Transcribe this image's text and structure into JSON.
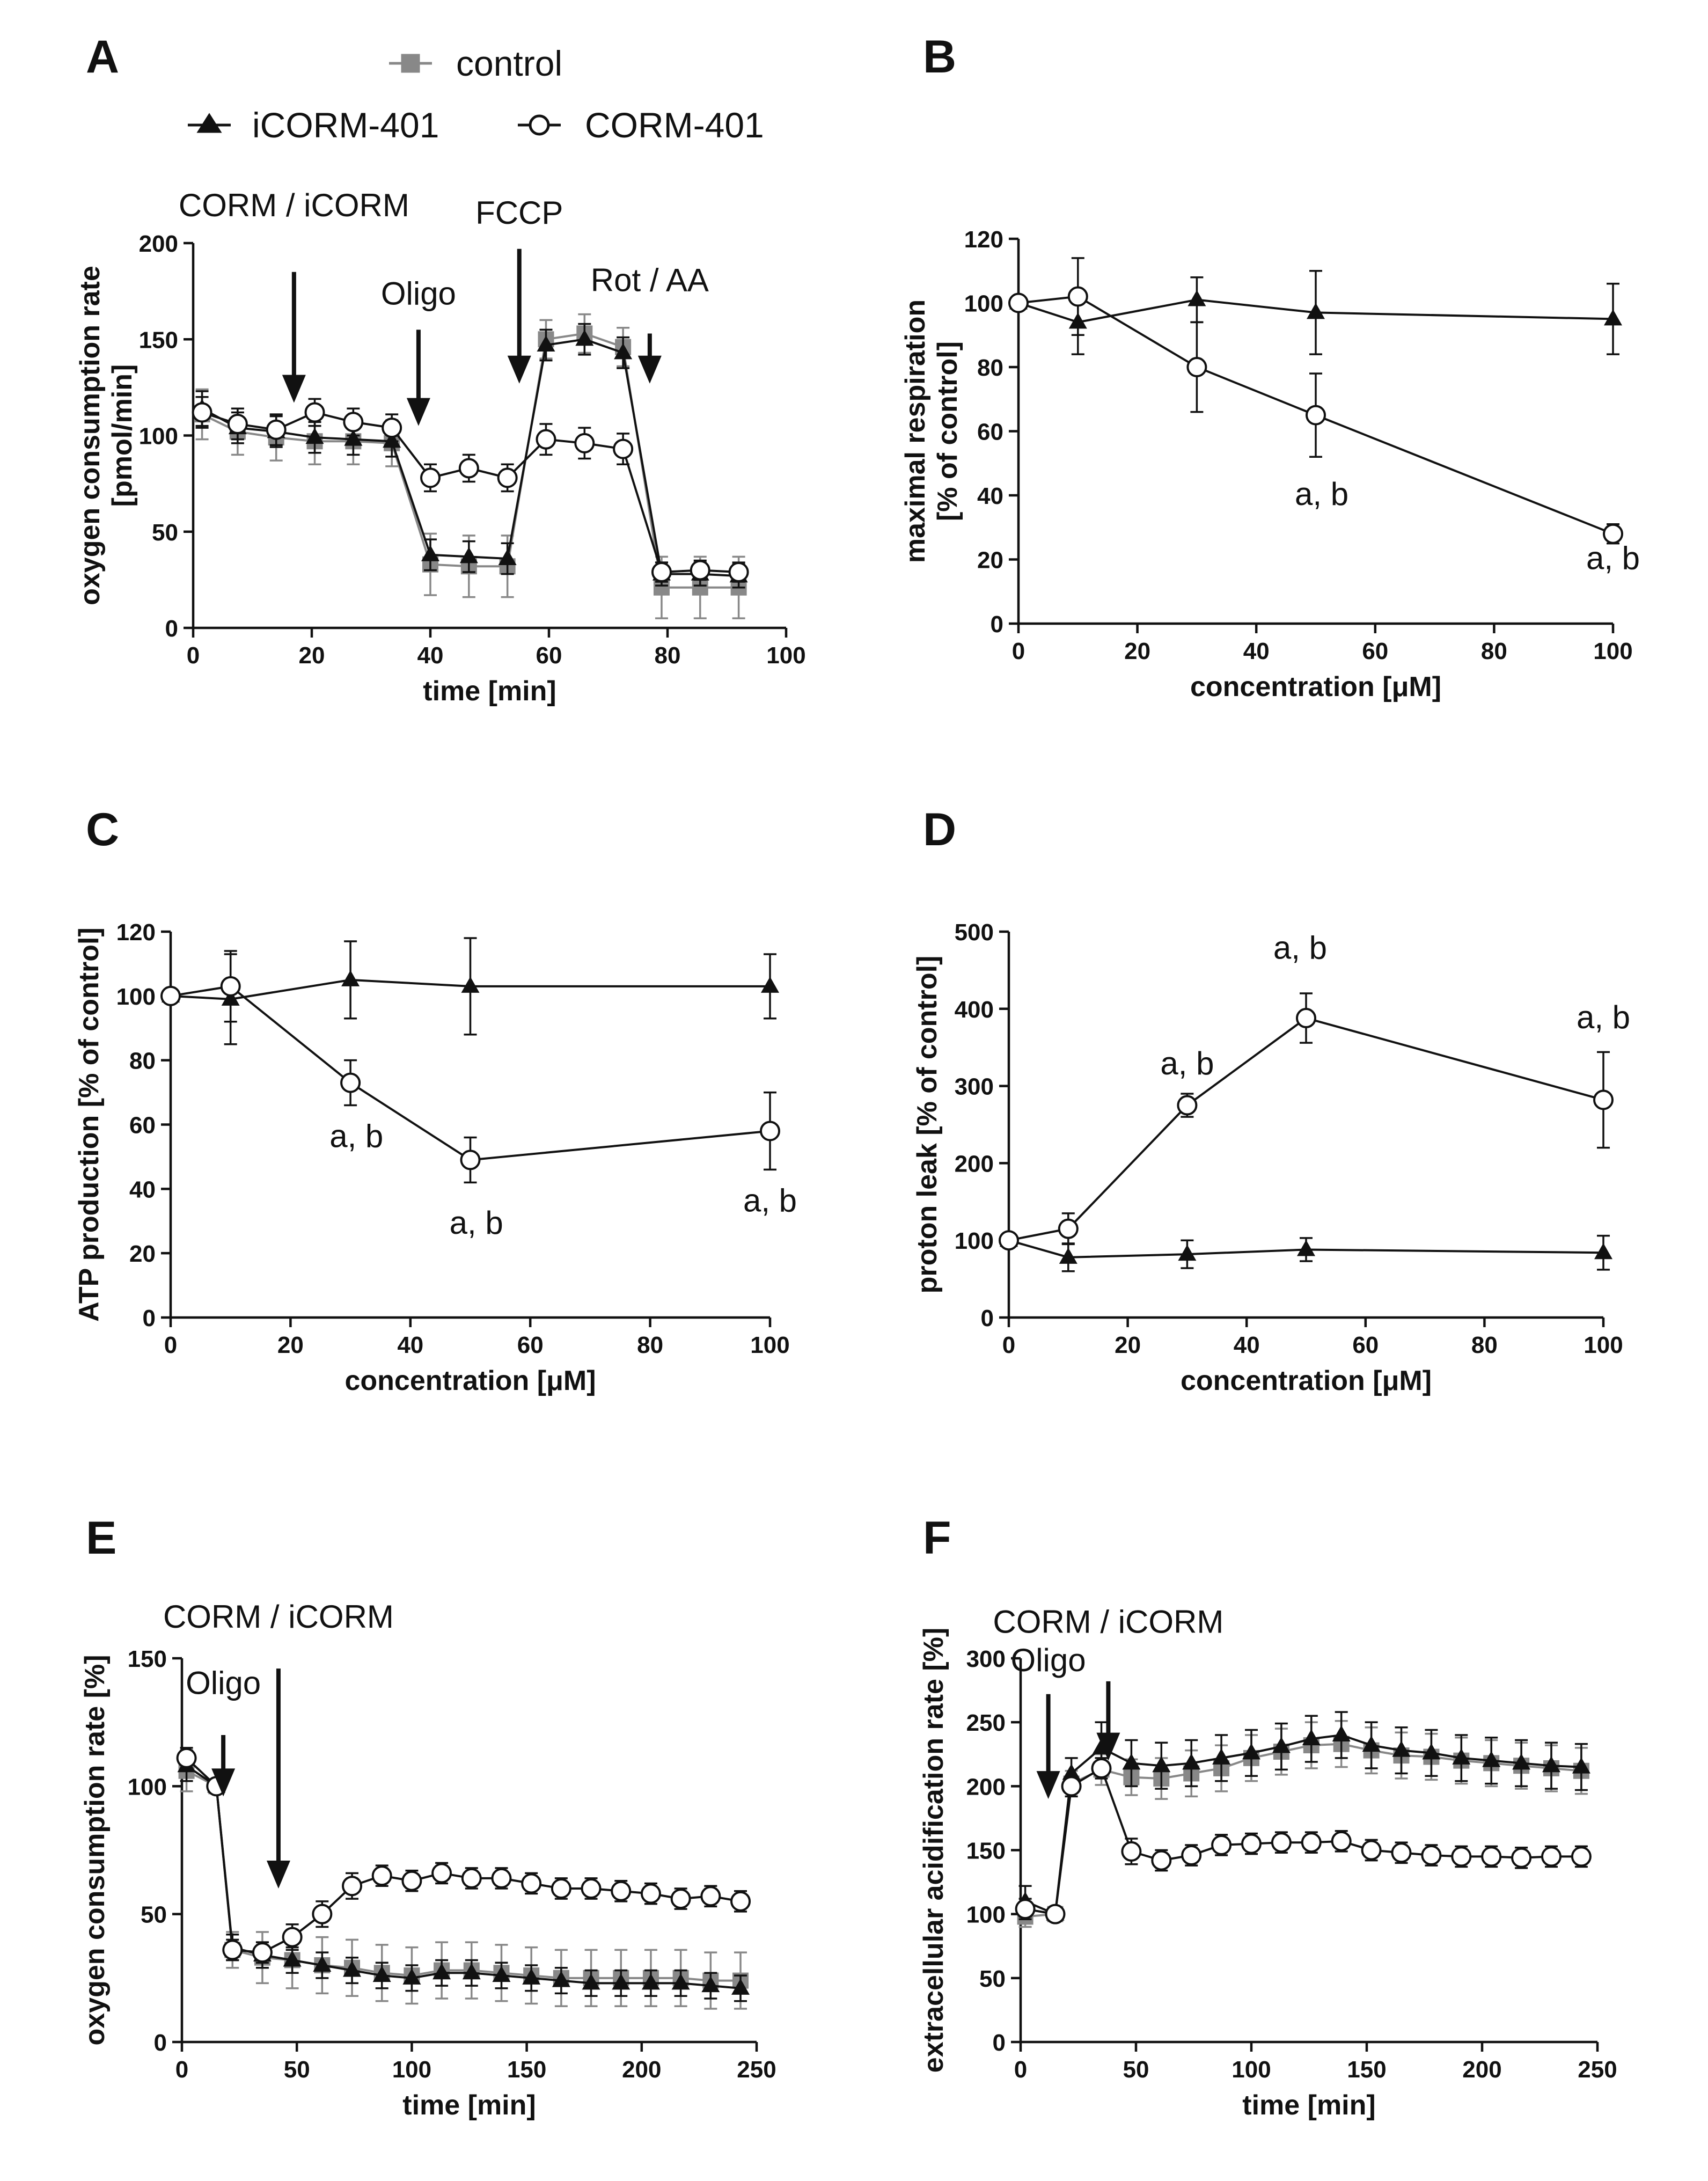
{
  "colors": {
    "control": "#888888",
    "icorm": "#111111",
    "corm": "#111111",
    "axis": "#111111"
  },
  "legend": {
    "control": "control",
    "icorm": "iCORM-401",
    "corm": "CORM-401"
  },
  "chart_data": [
    {
      "panel": "A",
      "type": "line",
      "xlabel": "time [min]",
      "ylabel": "oxygen consumption rate",
      "ylabel2": "[pmol/min]",
      "xlim": [
        0,
        100
      ],
      "ylim": [
        0,
        200
      ],
      "xticks": [
        0,
        20,
        40,
        60,
        80,
        100
      ],
      "yticks": [
        0,
        50,
        100,
        150,
        200
      ],
      "annotations": [
        {
          "text": "CORM / iCORM",
          "x": 17,
          "y_tip": 117,
          "y_top": 185,
          "label_y": 214
        },
        {
          "text": "Oligo",
          "x": 38,
          "y_tip": 105,
          "y_top": 155,
          "label_y": 168
        },
        {
          "text": "FCCP",
          "x": 55,
          "y_tip": 127,
          "y_top": 197,
          "label_y": 210
        },
        {
          "text": "Rot / AA",
          "x": 77,
          "y_tip": 127,
          "y_top": 153,
          "label_y": 175
        }
      ],
      "series": [
        {
          "name": "control",
          "marker": "square",
          "color": "#888888",
          "x": [
            1.5,
            7.5,
            14,
            20.5,
            27,
            33.5,
            40,
            46.5,
            53,
            59.5,
            66,
            72.5,
            79,
            85.5,
            92
          ],
          "y": [
            111,
            102,
            99,
            97,
            97,
            96,
            33,
            32,
            32,
            150,
            153,
            146,
            21,
            21,
            21
          ],
          "err": [
            13,
            12,
            12,
            12,
            12,
            12,
            16,
            16,
            16,
            10,
            10,
            10,
            16,
            16,
            16
          ]
        },
        {
          "name": "iCORM-401",
          "marker": "triangle",
          "color": "#111111",
          "x": [
            1.5,
            7.5,
            14,
            20.5,
            27,
            33.5,
            40,
            46.5,
            53,
            59.5,
            66,
            72.5,
            79,
            85.5,
            92
          ],
          "y": [
            114,
            104,
            102,
            99,
            98,
            97,
            38,
            37,
            36,
            147,
            150,
            143,
            28,
            28,
            27
          ],
          "err": [
            9,
            8,
            8,
            8,
            8,
            8,
            8,
            8,
            8,
            8,
            8,
            8,
            6,
            6,
            6
          ]
        },
        {
          "name": "CORM-401",
          "marker": "circle",
          "color": "#111111",
          "x": [
            1.5,
            7.5,
            14,
            20.5,
            27,
            33.5,
            40,
            46.5,
            53,
            59.5,
            66,
            72.5,
            79,
            85.5,
            92
          ],
          "y": [
            112,
            106,
            103,
            112,
            107,
            104,
            78,
            83,
            78,
            98,
            96,
            93,
            29,
            30,
            29
          ],
          "err": [
            8,
            8,
            8,
            7,
            7,
            7,
            7,
            7,
            7,
            8,
            8,
            8,
            5,
            5,
            5
          ]
        }
      ]
    },
    {
      "panel": "B",
      "type": "line",
      "xlabel": "concentration [μM]",
      "ylabel": "maximal respiration",
      "ylabel2": "[% of control]",
      "xlim": [
        0,
        100
      ],
      "ylim": [
        0,
        120
      ],
      "xticks": [
        0,
        20,
        40,
        60,
        80,
        100
      ],
      "yticks": [
        0,
        20,
        40,
        60,
        80,
        100,
        120
      ],
      "annotations": [
        {
          "text": "a, b",
          "x": 51,
          "y": 37
        },
        {
          "text": "a, b",
          "x": 100,
          "y": 17
        }
      ],
      "series": [
        {
          "name": "iCORM-401",
          "marker": "triangle",
          "color": "#111111",
          "x": [
            0,
            10,
            30,
            50,
            100
          ],
          "y": [
            100,
            94,
            101,
            97,
            95
          ],
          "err": [
            0,
            10,
            7,
            13,
            11
          ]
        },
        {
          "name": "CORM-401",
          "marker": "circle",
          "color": "#111111",
          "x": [
            0,
            10,
            30,
            50,
            100
          ],
          "y": [
            100,
            102,
            80,
            65,
            28
          ],
          "err": [
            0,
            12,
            14,
            13,
            3
          ]
        }
      ]
    },
    {
      "panel": "C",
      "type": "line",
      "xlabel": "concentration [μM]",
      "ylabel": "ATP production [% of control]",
      "xlim": [
        0,
        100
      ],
      "ylim": [
        0,
        120
      ],
      "xticks": [
        0,
        20,
        40,
        60,
        80,
        100
      ],
      "yticks": [
        0,
        20,
        40,
        60,
        80,
        100,
        120
      ],
      "annotations": [
        {
          "text": "a, b",
          "x": 31,
          "y": 53
        },
        {
          "text": "a, b",
          "x": 51,
          "y": 26
        },
        {
          "text": "a, b",
          "x": 100,
          "y": 33
        }
      ],
      "series": [
        {
          "name": "iCORM-401",
          "marker": "triangle",
          "color": "#111111",
          "x": [
            0,
            10,
            30,
            50,
            100
          ],
          "y": [
            100,
            99,
            105,
            103,
            103
          ],
          "err": [
            0,
            14,
            12,
            15,
            10
          ]
        },
        {
          "name": "CORM-401",
          "marker": "circle",
          "color": "#111111",
          "x": [
            0,
            10,
            30,
            50,
            100
          ],
          "y": [
            100,
            103,
            73,
            49,
            58
          ],
          "err": [
            0,
            11,
            7,
            7,
            12
          ]
        }
      ]
    },
    {
      "panel": "D",
      "type": "line",
      "xlabel": "concentration [μM]",
      "ylabel": "proton leak [% of control]",
      "xlim": [
        0,
        100
      ],
      "ylim": [
        0,
        500
      ],
      "xticks": [
        0,
        20,
        40,
        60,
        80,
        100
      ],
      "yticks": [
        0,
        100,
        200,
        300,
        400,
        500
      ],
      "annotations": [
        {
          "text": "a, b",
          "x": 30,
          "y": 315
        },
        {
          "text": "a, b",
          "x": 49,
          "y": 465
        },
        {
          "text": "a, b",
          "x": 100,
          "y": 375
        }
      ],
      "series": [
        {
          "name": "iCORM-401",
          "marker": "triangle",
          "color": "#111111",
          "x": [
            0,
            10,
            30,
            50,
            100
          ],
          "y": [
            100,
            78,
            82,
            88,
            84
          ],
          "err": [
            0,
            18,
            18,
            15,
            22
          ]
        },
        {
          "name": "CORM-401",
          "marker": "circle",
          "color": "#111111",
          "x": [
            0,
            10,
            30,
            50,
            100
          ],
          "y": [
            100,
            115,
            275,
            388,
            282
          ],
          "err": [
            0,
            20,
            15,
            32,
            62
          ]
        }
      ]
    },
    {
      "panel": "E",
      "type": "line",
      "xlabel": "time [min]",
      "ylabel": "oxygen consumption rate [%]",
      "xlim": [
        0,
        250
      ],
      "ylim": [
        0,
        150
      ],
      "xticks": [
        0,
        50,
        100,
        150,
        200,
        250
      ],
      "yticks": [
        0,
        50,
        100,
        150
      ],
      "annotations": [
        {
          "text": "CORM / iCORM",
          "x": 42,
          "y_tip": 60,
          "y_top": 146,
          "label_y": 162
        },
        {
          "text": "Oligo",
          "x": 18,
          "y_tip": 96,
          "y_top": 120,
          "label_y": 136
        }
      ],
      "series": [
        {
          "name": "control",
          "marker": "square",
          "color": "#888888",
          "x": [
            2,
            15,
            22,
            35,
            48,
            61,
            74,
            87,
            100,
            113,
            126,
            139,
            152,
            165,
            178,
            191,
            204,
            217,
            230,
            243
          ],
          "y": [
            106,
            100,
            36,
            33,
            32,
            30,
            29,
            27,
            26,
            28,
            28,
            27,
            26,
            25,
            25,
            25,
            25,
            25,
            24,
            24
          ],
          "err": [
            8,
            2,
            7,
            10,
            11,
            11,
            11,
            11,
            11,
            11,
            11,
            11,
            11,
            11,
            11,
            11,
            11,
            11,
            11,
            11
          ]
        },
        {
          "name": "iCORM-401",
          "marker": "triangle",
          "color": "#111111",
          "x": [
            2,
            15,
            22,
            35,
            48,
            61,
            74,
            87,
            100,
            113,
            126,
            139,
            152,
            165,
            178,
            191,
            204,
            217,
            230,
            243
          ],
          "y": [
            108,
            100,
            37,
            34,
            32,
            30,
            28,
            26,
            25,
            27,
            27,
            26,
            25,
            24,
            23,
            23,
            23,
            23,
            22,
            21
          ],
          "err": [
            6,
            2,
            5,
            5,
            5,
            5,
            5,
            5,
            5,
            5,
            5,
            5,
            5,
            5,
            5,
            5,
            5,
            5,
            5,
            5
          ]
        },
        {
          "name": "CORM-401",
          "marker": "circle",
          "color": "#111111",
          "x": [
            2,
            15,
            22,
            35,
            48,
            61,
            74,
            87,
            100,
            113,
            126,
            139,
            152,
            165,
            178,
            191,
            204,
            217,
            230,
            243
          ],
          "y": [
            111,
            100,
            36,
            35,
            41,
            50,
            61,
            65,
            63,
            66,
            64,
            64,
            62,
            60,
            60,
            59,
            58,
            56,
            57,
            55
          ],
          "err": [
            4,
            2,
            4,
            4,
            5,
            5,
            5,
            4,
            4,
            4,
            4,
            4,
            4,
            4,
            4,
            4,
            4,
            4,
            4,
            4
          ]
        }
      ]
    },
    {
      "panel": "F",
      "type": "line",
      "xlabel": "time [min]",
      "ylabel": "extracellular acidification rate [%]",
      "xlim": [
        0,
        250
      ],
      "ylim": [
        0,
        300
      ],
      "xticks": [
        0,
        50,
        100,
        150,
        200,
        250
      ],
      "yticks": [
        0,
        50,
        100,
        150,
        200,
        250,
        300
      ],
      "annotations": [
        {
          "text": "CORM / iCORM",
          "x": 38,
          "y_tip": 220,
          "y_top": 282,
          "label_y": 320
        },
        {
          "text": "Oligo",
          "x": 12,
          "y_tip": 190,
          "y_top": 272,
          "label_y": 290
        }
      ],
      "series": [
        {
          "name": "control",
          "marker": "square",
          "color": "#888888",
          "x": [
            2,
            15,
            22,
            35,
            48,
            61,
            74,
            87,
            100,
            113,
            126,
            139,
            152,
            165,
            178,
            191,
            204,
            217,
            230,
            243
          ],
          "y": [
            98,
            100,
            202,
            213,
            207,
            206,
            210,
            214,
            222,
            227,
            232,
            233,
            228,
            224,
            223,
            220,
            218,
            216,
            214,
            212
          ],
          "err": [
            8,
            2,
            10,
            12,
            14,
            16,
            18,
            18,
            18,
            18,
            18,
            18,
            18,
            18,
            18,
            18,
            18,
            18,
            18,
            18
          ]
        },
        {
          "name": "iCORM-401",
          "marker": "triangle",
          "color": "#111111",
          "x": [
            2,
            15,
            22,
            35,
            48,
            61,
            74,
            87,
            100,
            113,
            126,
            139,
            152,
            165,
            178,
            191,
            204,
            217,
            230,
            243
          ],
          "y": [
            110,
            100,
            210,
            230,
            218,
            216,
            218,
            222,
            226,
            231,
            237,
            240,
            232,
            228,
            226,
            222,
            220,
            218,
            216,
            215
          ],
          "err": [
            12,
            2,
            12,
            20,
            18,
            18,
            18,
            18,
            18,
            18,
            18,
            18,
            18,
            18,
            18,
            18,
            18,
            18,
            18,
            18
          ]
        },
        {
          "name": "CORM-401",
          "marker": "circle",
          "color": "#111111",
          "x": [
            2,
            15,
            22,
            35,
            48,
            61,
            74,
            87,
            100,
            113,
            126,
            139,
            152,
            165,
            178,
            191,
            204,
            217,
            230,
            243
          ],
          "y": [
            104,
            100,
            200,
            214,
            149,
            142,
            146,
            154,
            155,
            156,
            156,
            157,
            150,
            148,
            146,
            145,
            145,
            144,
            145,
            145
          ],
          "err": [
            8,
            2,
            8,
            8,
            10,
            8,
            8,
            8,
            8,
            8,
            8,
            8,
            8,
            8,
            8,
            8,
            8,
            8,
            8,
            8
          ]
        }
      ]
    }
  ]
}
